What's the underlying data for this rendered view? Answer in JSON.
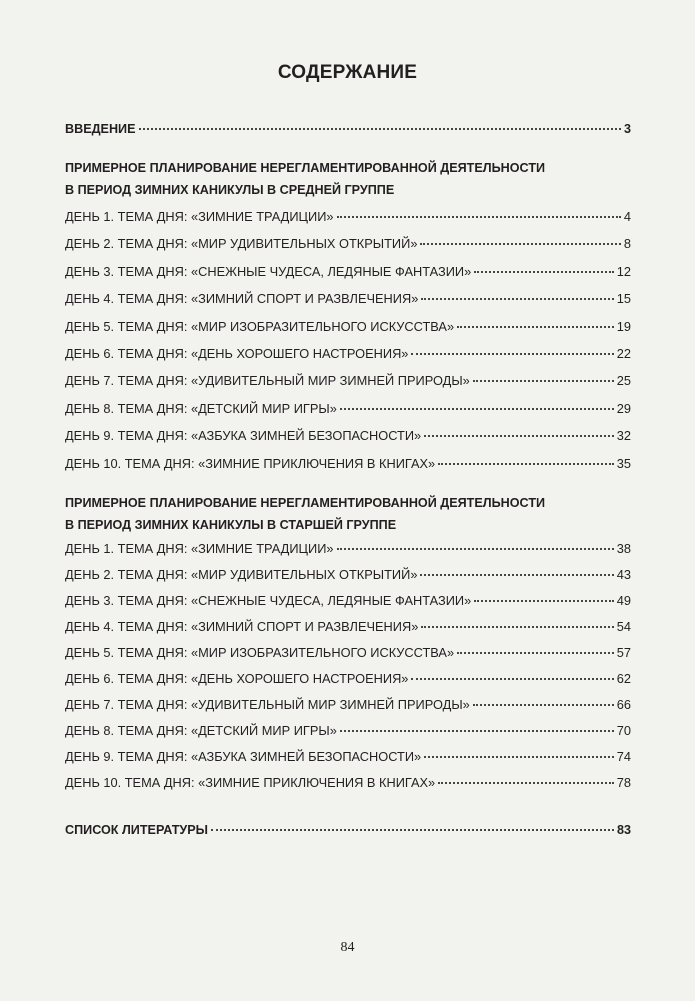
{
  "title": "СОДЕРЖАНИЕ",
  "intro": {
    "label": "ВВЕДЕНИЕ",
    "page": "3"
  },
  "sections": [
    {
      "heading": [
        "ПРИМЕРНОЕ ПЛАНИРОВАНИЕ НЕРЕГЛАМЕНТИРОВАННОЙ ДЕЯТЕЛЬНОСТИ",
        "В ПЕРИОД ЗИМНИХ КАНИКУЛЫ В СРЕДНЕЙ ГРУППЕ"
      ],
      "entries": [
        {
          "label": "ДЕНЬ 1. ТЕМА ДНЯ: «ЗИМНИЕ ТРАДИЦИИ»",
          "page": "4"
        },
        {
          "label": "ДЕНЬ 2. ТЕМА ДНЯ: «МИР УДИВИТЕЛЬНЫХ ОТКРЫТИЙ»",
          "page": "8"
        },
        {
          "label": "ДЕНЬ 3. ТЕМА ДНЯ: «СНЕЖНЫЕ ЧУДЕСА, ЛЕДЯНЫЕ ФАНТАЗИИ»",
          "page": "12"
        },
        {
          "label": "ДЕНЬ 4. ТЕМА ДНЯ: «ЗИМНИЙ СПОРТ И РАЗВЛЕЧЕНИЯ»",
          "page": "15"
        },
        {
          "label": "ДЕНЬ 5. ТЕМА ДНЯ: «МИР ИЗОБРАЗИТЕЛЬНОГО ИСКУССТВА»",
          "page": "19"
        },
        {
          "label": "ДЕНЬ 6. ТЕМА ДНЯ: «ДЕНЬ ХОРОШЕГО НАСТРОЕНИЯ»",
          "page": "22"
        },
        {
          "label": "ДЕНЬ 7. ТЕМА ДНЯ: «УДИВИТЕЛЬНЫЙ МИР ЗИМНЕЙ ПРИРОДЫ»",
          "page": "25"
        },
        {
          "label": "ДЕНЬ 8. ТЕМА ДНЯ: «ДЕТСКИЙ МИР ИГРЫ»",
          "page": "29"
        },
        {
          "label": "ДЕНЬ 9. ТЕМА ДНЯ: «АЗБУКА ЗИМНЕЙ БЕЗОПАСНОСТИ»",
          "page": "32"
        },
        {
          "label": "ДЕНЬ 10. ТЕМА ДНЯ: «ЗИМНИЕ ПРИКЛЮЧЕНИЯ В КНИГАХ»",
          "page": "35"
        }
      ]
    },
    {
      "heading": [
        "ПРИМЕРНОЕ ПЛАНИРОВАНИЕ  НЕРЕГЛАМЕНТИРОВАННОЙ ДЕЯТЕЛЬНОСТИ",
        "В ПЕРИОД ЗИМНИХ  КАНИКУЛЫ В СТАРШЕЙ ГРУППЕ"
      ],
      "entries": [
        {
          "label": "ДЕНЬ 1. ТЕМА ДНЯ: «ЗИМНИЕ ТРАДИЦИИ»",
          "page": "38"
        },
        {
          "label": "ДЕНЬ 2. ТЕМА ДНЯ: «МИР УДИВИТЕЛЬНЫХ ОТКРЫТИЙ»",
          "page": "43"
        },
        {
          "label": "ДЕНЬ 3. ТЕМА ДНЯ: «СНЕЖНЫЕ ЧУДЕСА, ЛЕДЯНЫЕ ФАНТАЗИИ»",
          "page": "49"
        },
        {
          "label": "ДЕНЬ 4. ТЕМА ДНЯ: «ЗИМНИЙ СПОРТ И РАЗВЛЕЧЕНИЯ»",
          "page": "54"
        },
        {
          "label": "ДЕНЬ 5. ТЕМА ДНЯ: «МИР ИЗОБРАЗИТЕЛЬНОГО ИСКУССТВА»",
          "page": "57"
        },
        {
          "label": "ДЕНЬ 6. ТЕМА ДНЯ: «ДЕНЬ ХОРОШЕГО НАСТРОЕНИЯ»",
          "page": "62"
        },
        {
          "label": "ДЕНЬ 7. ТЕМА ДНЯ: «УДИВИТЕЛЬНЫЙ МИР ЗИМНЕЙ ПРИРОДЫ»",
          "page": "66"
        },
        {
          "label": "ДЕНЬ 8. ТЕМА ДНЯ: «ДЕТСКИЙ МИР ИГРЫ»",
          "page": "70"
        },
        {
          "label": "ДЕНЬ 9. ТЕМА ДНЯ: «АЗБУКА ЗИМНЕЙ БЕЗОПАСНОСТИ»",
          "page": "74"
        },
        {
          "label": "ДЕНЬ 10. ТЕМА ДНЯ: «ЗИМНИЕ ПРИКЛЮЧЕНИЯ В КНИГАХ»",
          "page": "78"
        }
      ]
    }
  ],
  "references": {
    "label": "СПИСОК ЛИТЕРАТУРЫ",
    "page": "83"
  },
  "page_number": "84"
}
